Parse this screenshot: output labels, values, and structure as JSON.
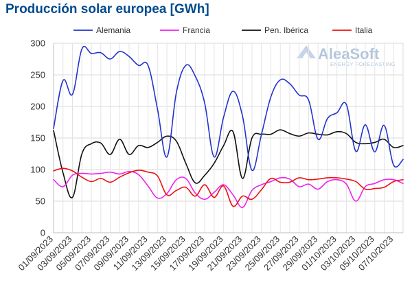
{
  "chart_data": {
    "type": "line",
    "title": "Producción solar europea [GWh]",
    "ylim": [
      0,
      300
    ],
    "yticks": [
      0,
      50,
      100,
      150,
      200,
      250,
      300
    ],
    "xticks": [
      "01/09/2023",
      "03/09/2023",
      "05/09/2023",
      "07/09/2023",
      "09/09/2023",
      "11/09/2023",
      "13/09/2023",
      "15/09/2023",
      "17/09/2023",
      "19/09/2023",
      "21/09/2023",
      "23/09/2023",
      "25/09/2023",
      "27/09/2023",
      "29/09/2023",
      "01/10/2023",
      "03/10/2023",
      "05/10/2023",
      "07/10/2023"
    ],
    "grid": true,
    "legend_position": "top",
    "watermark": {
      "name": "AleaSoft",
      "tagline": "ENERGY FORECASTING"
    },
    "x": [
      "01/09/2023",
      "02/09/2023",
      "03/09/2023",
      "04/09/2023",
      "05/09/2023",
      "06/09/2023",
      "07/09/2023",
      "08/09/2023",
      "09/09/2023",
      "10/09/2023",
      "11/09/2023",
      "12/09/2023",
      "13/09/2023",
      "14/09/2023",
      "15/09/2023",
      "16/09/2023",
      "17/09/2023",
      "18/09/2023",
      "19/09/2023",
      "20/09/2023",
      "21/09/2023",
      "22/09/2023",
      "23/09/2023",
      "24/09/2023",
      "25/09/2023",
      "26/09/2023",
      "27/09/2023",
      "28/09/2023",
      "29/09/2023",
      "30/09/2023",
      "01/10/2023",
      "02/10/2023",
      "03/10/2023",
      "04/10/2023",
      "05/10/2023",
      "06/10/2023",
      "07/10/2023",
      "08/10/2023"
    ],
    "series": [
      {
        "name": "Alemania",
        "color": "#2233cc",
        "values": [
          165,
          241,
          219,
          291,
          284,
          285,
          275,
          287,
          279,
          265,
          265,
          196,
          120,
          222,
          265,
          248,
          205,
          120,
          183,
          224,
          185,
          99,
          155,
          215,
          242,
          236,
          218,
          210,
          148,
          181,
          190,
          203,
          129,
          171,
          128,
          170,
          107,
          116
        ]
      },
      {
        "name": "Francia",
        "color": "#ee22ee",
        "values": [
          84,
          73,
          91,
          94,
          93,
          94,
          96,
          93,
          97,
          92,
          74,
          55,
          62,
          84,
          86,
          63,
          53,
          64,
          76,
          60,
          40,
          67,
          76,
          81,
          87,
          85,
          73,
          77,
          69,
          81,
          84,
          77,
          50,
          73,
          78,
          84,
          84,
          78
        ]
      },
      {
        "name": "Pen. Ibérica",
        "color": "#111111",
        "values": [
          162,
          95,
          56,
          125,
          141,
          142,
          124,
          148,
          124,
          138,
          135,
          143,
          153,
          145,
          110,
          79,
          91,
          110,
          138,
          160,
          86,
          150,
          156,
          156,
          163,
          157,
          153,
          158,
          156,
          155,
          160,
          157,
          143,
          141,
          143,
          148,
          135,
          138
        ]
      },
      {
        "name": "Italia",
        "color": "#ee1111",
        "values": [
          98,
          102,
          98,
          88,
          81,
          86,
          80,
          88,
          95,
          99,
          96,
          90,
          60,
          67,
          72,
          58,
          76,
          56,
          74,
          42,
          58,
          53,
          68,
          86,
          80,
          80,
          87,
          84,
          85,
          87,
          87,
          85,
          81,
          69,
          70,
          72,
          81,
          84
        ]
      }
    ]
  }
}
